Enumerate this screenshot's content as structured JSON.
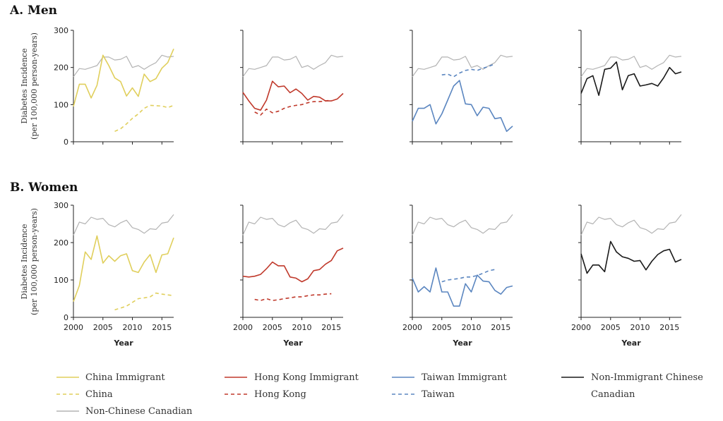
{
  "sections": [
    {
      "title": "A. Men"
    },
    {
      "title": "B. Women"
    }
  ],
  "colors": {
    "China": "#e0cf5c",
    "Hong Kong": "#c0392b",
    "Taiwan": "#5b86c0",
    "Non-Immigrant": "#1a1a1a",
    "Non-Chinese": "#b3b3b3"
  },
  "legend": {
    "china_immigrant": "China Immigrant",
    "china": "China",
    "non_chinese": "Non-Chinese Canadian",
    "hk_immigrant": "Hong Kong Immigrant",
    "hk": "Hong Kong",
    "taiwan_immigrant": "Taiwan Immigrant",
    "taiwan": "Taiwan",
    "non_immigrant_l1": "Non-Immigrant Chinese",
    "non_immigrant_l2": "Canadian"
  },
  "chart_data": {
    "type": "line",
    "xlabel": "Year",
    "ylabel_line1": "Diabetes Incidence",
    "ylabel_line2": "(per 100,000 person-years)",
    "xlim": [
      2000,
      2017
    ],
    "ylim": [
      0,
      300
    ],
    "xticks": [
      2000,
      2005,
      2010,
      2015
    ],
    "yticks": [
      0,
      100,
      200,
      300
    ],
    "panels": [
      {
        "group": "Men",
        "series": [
          {
            "name": "Non-Chinese Canadian",
            "color": "#b3b3b3",
            "dash": false,
            "x": [
              2000,
              2001,
              2002,
              2003,
              2004,
              2005,
              2006,
              2007,
              2008,
              2009,
              2010,
              2011,
              2012,
              2013,
              2014,
              2015,
              2016,
              2017
            ],
            "y": [
              175,
              197,
              195,
              200,
              205,
              228,
              228,
              220,
              222,
              230,
              200,
              205,
              195,
              205,
              213,
              233,
              228,
              230
            ]
          },
          {
            "name": "China Immigrant",
            "color": "#e0cf5c",
            "dash": false,
            "x": [
              2000,
              2001,
              2002,
              2003,
              2004,
              2005,
              2006,
              2007,
              2008,
              2009,
              2010,
              2011,
              2012,
              2013,
              2014,
              2015,
              2016,
              2017
            ],
            "y": [
              95,
              155,
              155,
              118,
              152,
              233,
              205,
              172,
              162,
              123,
              145,
              122,
              182,
              162,
              170,
              198,
              213,
              250
            ]
          },
          {
            "name": "China",
            "color": "#e0cf5c",
            "dash": true,
            "x": [
              2007,
              2008,
              2009,
              2010,
              2011,
              2012,
              2013,
              2014,
              2015,
              2016,
              2017
            ],
            "y": [
              28,
              35,
              48,
              63,
              75,
              90,
              98,
              97,
              96,
              92,
              98
            ]
          }
        ]
      },
      {
        "group": "Men",
        "series": [
          {
            "name": "Non-Chinese Canadian",
            "color": "#b3b3b3",
            "dash": false,
            "x": [
              2000,
              2001,
              2002,
              2003,
              2004,
              2005,
              2006,
              2007,
              2008,
              2009,
              2010,
              2011,
              2012,
              2013,
              2014,
              2015,
              2016,
              2017
            ],
            "y": [
              175,
              197,
              195,
              200,
              205,
              228,
              228,
              220,
              222,
              230,
              200,
              205,
              195,
              205,
              213,
              233,
              228,
              230
            ]
          },
          {
            "name": "Hong Kong Immigrant",
            "color": "#c0392b",
            "dash": false,
            "x": [
              2000,
              2001,
              2002,
              2003,
              2004,
              2005,
              2006,
              2007,
              2008,
              2009,
              2010,
              2011,
              2012,
              2013,
              2014,
              2015,
              2016,
              2017
            ],
            "y": [
              133,
              110,
              90,
              85,
              112,
              163,
              148,
              150,
              132,
              142,
              130,
              112,
              122,
              120,
              110,
              110,
              115,
              130
            ]
          },
          {
            "name": "Hong Kong",
            "color": "#c0392b",
            "dash": true,
            "x": [
              2002,
              2003,
              2004,
              2005,
              2006,
              2007,
              2008,
              2009,
              2010,
              2011,
              2012,
              2013,
              2014,
              2015
            ],
            "y": [
              80,
              72,
              88,
              78,
              82,
              90,
              95,
              98,
              100,
              105,
              108,
              108,
              110,
              112
            ]
          }
        ]
      },
      {
        "group": "Men",
        "series": [
          {
            "name": "Non-Chinese Canadian",
            "color": "#b3b3b3",
            "dash": false,
            "x": [
              2000,
              2001,
              2002,
              2003,
              2004,
              2005,
              2006,
              2007,
              2008,
              2009,
              2010,
              2011,
              2012,
              2013,
              2014,
              2015,
              2016,
              2017
            ],
            "y": [
              175,
              197,
              195,
              200,
              205,
              228,
              228,
              220,
              222,
              230,
              200,
              205,
              195,
              205,
              213,
              233,
              228,
              230
            ]
          },
          {
            "name": "Taiwan Immigrant",
            "color": "#5b86c0",
            "dash": false,
            "x": [
              2000,
              2001,
              2002,
              2003,
              2004,
              2005,
              2006,
              2007,
              2008,
              2009,
              2010,
              2011,
              2012,
              2013,
              2014,
              2015,
              2016,
              2017
            ],
            "y": [
              55,
              90,
              90,
              100,
              48,
              75,
              112,
              150,
              165,
              102,
              100,
              70,
              93,
              90,
              62,
              65,
              28,
              42
            ]
          },
          {
            "name": "Taiwan",
            "color": "#5b86c0",
            "dash": true,
            "x": [
              2005,
              2006,
              2007,
              2008,
              2009,
              2010,
              2011,
              2012,
              2013,
              2014
            ],
            "y": [
              180,
              182,
              175,
              185,
              192,
              195,
              192,
              198,
              203,
              210
            ]
          }
        ]
      },
      {
        "group": "Men",
        "series": [
          {
            "name": "Non-Chinese Canadian",
            "color": "#b3b3b3",
            "dash": false,
            "x": [
              2000,
              2001,
              2002,
              2003,
              2004,
              2005,
              2006,
              2007,
              2008,
              2009,
              2010,
              2011,
              2012,
              2013,
              2014,
              2015,
              2016,
              2017
            ],
            "y": [
              175,
              197,
              195,
              200,
              205,
              228,
              228,
              220,
              222,
              230,
              200,
              205,
              195,
              205,
              213,
              233,
              228,
              230
            ]
          },
          {
            "name": "Non-Immigrant Chinese Canadian",
            "color": "#1a1a1a",
            "dash": false,
            "x": [
              2000,
              2001,
              2002,
              2003,
              2004,
              2005,
              2006,
              2007,
              2008,
              2009,
              2010,
              2011,
              2012,
              2013,
              2014,
              2015,
              2016,
              2017
            ],
            "y": [
              130,
              170,
              178,
              125,
              195,
              198,
              215,
              140,
              178,
              183,
              150,
              153,
              157,
              150,
              172,
              200,
              183,
              188
            ]
          }
        ]
      },
      {
        "group": "Women",
        "series": [
          {
            "name": "Non-Chinese Canadian",
            "color": "#b3b3b3",
            "dash": false,
            "x": [
              2000,
              2001,
              2002,
              2003,
              2004,
              2005,
              2006,
              2007,
              2008,
              2009,
              2010,
              2011,
              2012,
              2013,
              2014,
              2015,
              2016,
              2017
            ],
            "y": [
              220,
              255,
              250,
              268,
              262,
              265,
              248,
              242,
              253,
              260,
              240,
              235,
              225,
              237,
              235,
              252,
              255,
              275
            ]
          },
          {
            "name": "China Immigrant",
            "color": "#e0cf5c",
            "dash": false,
            "x": [
              2000,
              2001,
              2002,
              2003,
              2004,
              2005,
              2006,
              2007,
              2008,
              2009,
              2010,
              2011,
              2012,
              2013,
              2014,
              2015,
              2016,
              2017
            ],
            "y": [
              42,
              85,
              175,
              155,
              218,
              145,
              165,
              150,
              165,
              170,
              125,
              120,
              148,
              168,
              120,
              167,
              170,
              213
            ]
          },
          {
            "name": "China",
            "color": "#e0cf5c",
            "dash": true,
            "x": [
              2007,
              2008,
              2009,
              2010,
              2011,
              2012,
              2013,
              2014,
              2015,
              2016,
              2017
            ],
            "y": [
              20,
              25,
              30,
              40,
              50,
              52,
              55,
              65,
              62,
              60,
              58
            ]
          }
        ]
      },
      {
        "group": "Women",
        "series": [
          {
            "name": "Non-Chinese Canadian",
            "color": "#b3b3b3",
            "dash": false,
            "x": [
              2000,
              2001,
              2002,
              2003,
              2004,
              2005,
              2006,
              2007,
              2008,
              2009,
              2010,
              2011,
              2012,
              2013,
              2014,
              2015,
              2016,
              2017
            ],
            "y": [
              220,
              255,
              250,
              268,
              262,
              265,
              248,
              242,
              253,
              260,
              240,
              235,
              225,
              237,
              235,
              252,
              255,
              275
            ]
          },
          {
            "name": "Hong Kong Immigrant",
            "color": "#c0392b",
            "dash": false,
            "x": [
              2000,
              2001,
              2002,
              2003,
              2004,
              2005,
              2006,
              2007,
              2008,
              2009,
              2010,
              2011,
              2012,
              2013,
              2014,
              2015,
              2016,
              2017
            ],
            "y": [
              110,
              108,
              110,
              115,
              130,
              148,
              138,
              138,
              108,
              105,
              95,
              103,
              125,
              128,
              142,
              152,
              178,
              185
            ]
          },
          {
            "name": "Hong Kong",
            "color": "#c0392b",
            "dash": true,
            "x": [
              2002,
              2003,
              2004,
              2005,
              2006,
              2007,
              2008,
              2009,
              2010,
              2011,
              2012,
              2013,
              2014,
              2015
            ],
            "y": [
              48,
              45,
              50,
              45,
              47,
              50,
              52,
              55,
              55,
              58,
              60,
              60,
              62,
              63
            ]
          }
        ]
      },
      {
        "group": "Women",
        "series": [
          {
            "name": "Non-Chinese Canadian",
            "color": "#b3b3b3",
            "dash": false,
            "x": [
              2000,
              2001,
              2002,
              2003,
              2004,
              2005,
              2006,
              2007,
              2008,
              2009,
              2010,
              2011,
              2012,
              2013,
              2014,
              2015,
              2016,
              2017
            ],
            "y": [
              220,
              255,
              250,
              268,
              262,
              265,
              248,
              242,
              253,
              260,
              240,
              235,
              225,
              237,
              235,
              252,
              255,
              275
            ]
          },
          {
            "name": "Taiwan Immigrant",
            "color": "#5b86c0",
            "dash": false,
            "x": [
              2000,
              2001,
              2002,
              2003,
              2004,
              2005,
              2006,
              2007,
              2008,
              2009,
              2010,
              2011,
              2012,
              2013,
              2014,
              2015,
              2016,
              2017
            ],
            "y": [
              105,
              68,
              82,
              68,
              132,
              68,
              68,
              30,
              30,
              90,
              68,
              113,
              97,
              95,
              72,
              62,
              80,
              84
            ]
          },
          {
            "name": "Taiwan",
            "color": "#5b86c0",
            "dash": true,
            "x": [
              2005,
              2006,
              2007,
              2008,
              2009,
              2010,
              2011,
              2012,
              2013,
              2014
            ],
            "y": [
              95,
              100,
              102,
              104,
              108,
              108,
              112,
              118,
              125,
              128
            ]
          }
        ]
      },
      {
        "group": "Women",
        "series": [
          {
            "name": "Non-Chinese Canadian",
            "color": "#b3b3b3",
            "dash": false,
            "x": [
              2000,
              2001,
              2002,
              2003,
              2004,
              2005,
              2006,
              2007,
              2008,
              2009,
              2010,
              2011,
              2012,
              2013,
              2014,
              2015,
              2016,
              2017
            ],
            "y": [
              220,
              255,
              250,
              268,
              262,
              265,
              248,
              242,
              253,
              260,
              240,
              235,
              225,
              237,
              235,
              252,
              255,
              275
            ]
          },
          {
            "name": "Non-Immigrant Chinese Canadian",
            "color": "#1a1a1a",
            "dash": false,
            "x": [
              2000,
              2001,
              2002,
              2003,
              2004,
              2005,
              2006,
              2007,
              2008,
              2009,
              2010,
              2011,
              2012,
              2013,
              2014,
              2015,
              2016,
              2017
            ],
            "y": [
              170,
              118,
              140,
              140,
              122,
              203,
              175,
              162,
              158,
              150,
              152,
              127,
              150,
              168,
              178,
              182,
              148,
              155
            ]
          }
        ]
      }
    ]
  }
}
